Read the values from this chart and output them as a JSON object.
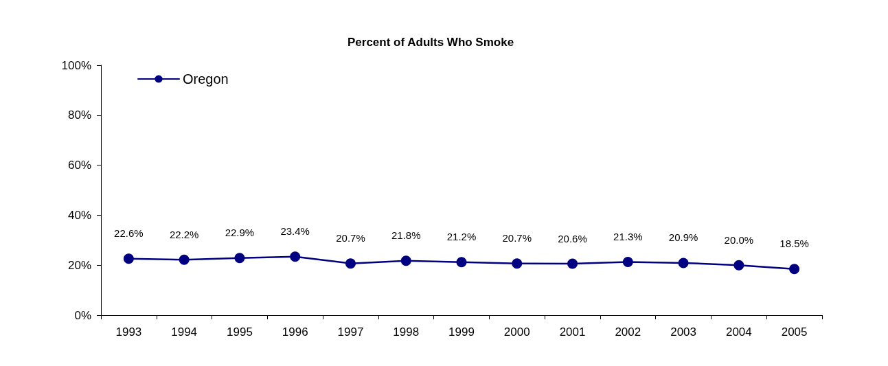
{
  "chart_data": {
    "type": "line",
    "title": "Percent of Adults Who Smoke",
    "categories": [
      "1993",
      "1994",
      "1995",
      "1996",
      "1997",
      "1998",
      "1999",
      "2000",
      "2001",
      "2002",
      "2003",
      "2004",
      "2005"
    ],
    "series": [
      {
        "name": "Oregon",
        "color": "#000080",
        "values": [
          22.6,
          22.2,
          22.9,
          23.4,
          20.7,
          21.8,
          21.2,
          20.7,
          20.6,
          21.3,
          20.9,
          20.0,
          18.5
        ],
        "value_labels": [
          "22.6%",
          "22.2%",
          "22.9%",
          "23.4%",
          "20.7%",
          "21.8%",
          "21.2%",
          "20.7%",
          "20.6%",
          "21.3%",
          "20.9%",
          "20.0%",
          "18.5%"
        ]
      }
    ],
    "ylim": [
      0,
      100
    ],
    "yticks": [
      {
        "value": 0,
        "label": "0%"
      },
      {
        "value": 20,
        "label": "20%"
      },
      {
        "value": 40,
        "label": "40%"
      },
      {
        "value": 60,
        "label": "60%"
      },
      {
        "value": 80,
        "label": "80%"
      },
      {
        "value": 100,
        "label": "100%"
      }
    ],
    "grid": false,
    "legend": "top left",
    "marker": "circle",
    "line_style": "solid"
  }
}
